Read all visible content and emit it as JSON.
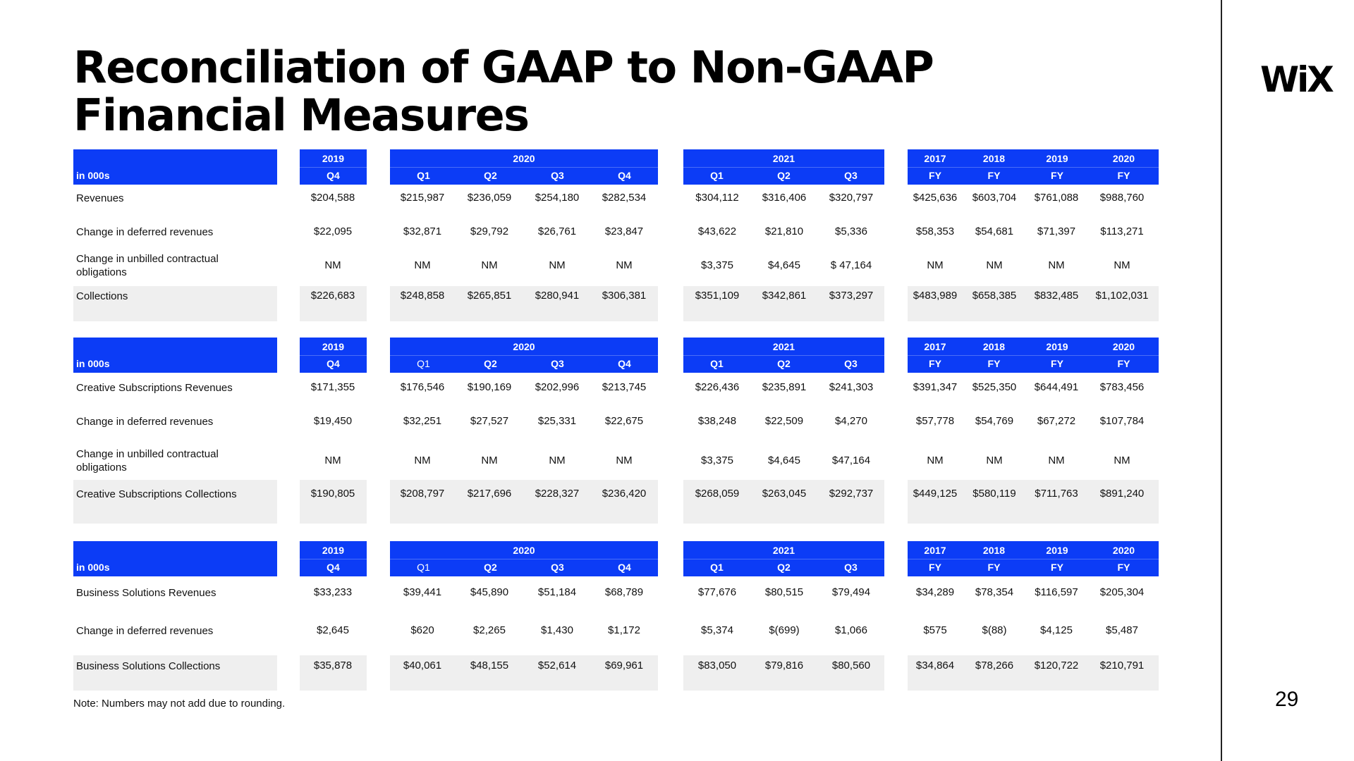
{
  "title_line1": "Reconciliation of GAAP to Non-GAAP",
  "title_line2": "Financial Measures",
  "logo": "WiX",
  "page_number": "29",
  "note": "Note: Numbers may not add due to rounding.",
  "header": {
    "in000s": "in 000s",
    "y2019": "2019",
    "y2020": "2020",
    "y2021": "2021",
    "fy_years": [
      "2017",
      "2018",
      "2019",
      "2020"
    ],
    "q4": "Q4",
    "q1": "Q1",
    "q2": "Q2",
    "q3": "Q3",
    "fy": "FY"
  },
  "table1": {
    "rows": [
      {
        "label": "Revenues",
        "values": [
          "$204,588",
          "$215,987",
          "$236,059",
          "$254,180",
          "$282,534",
          "$304,112",
          "$316,406",
          "$320,797",
          "$425,636",
          "$603,704",
          "$761,088",
          "$988,760"
        ]
      },
      {
        "label": "Change in deferred revenues",
        "values": [
          "$22,095",
          "$32,871",
          "$29,792",
          "$26,761",
          "$23,847",
          "$43,622",
          "$21,810",
          "$5,336",
          "$58,353",
          "$54,681",
          "$71,397",
          "$113,271"
        ]
      },
      {
        "label": "Change in unbilled contractual obligations",
        "values": [
          "NM",
          "NM",
          "NM",
          "NM",
          "NM",
          "$3,375",
          "$4,645",
          "$ 47,164",
          "NM",
          "NM",
          "NM",
          "NM"
        ]
      },
      {
        "label": "Collections",
        "values": [
          "$226,683",
          "$248,858",
          "$265,851",
          "$280,941",
          "$306,381",
          "$351,109",
          "$342,861",
          "$373,297",
          "$483,989",
          "$658,385",
          "$832,485",
          "$1,102,031"
        ]
      }
    ]
  },
  "table2": {
    "rows": [
      {
        "label": "Creative Subscriptions Revenues",
        "values": [
          "$171,355",
          "$176,546",
          "$190,169",
          "$202,996",
          "$213,745",
          "$226,436",
          "$235,891",
          "$241,303",
          "$391,347",
          "$525,350",
          "$644,491",
          "$783,456"
        ]
      },
      {
        "label": "Change in deferred revenues",
        "values": [
          "$19,450",
          "$32,251",
          "$27,527",
          "$25,331",
          "$22,675",
          "$38,248",
          "$22,509",
          "$4,270",
          "$57,778",
          "$54,769",
          "$67,272",
          "$107,784"
        ]
      },
      {
        "label": "Change in unbilled contractual obligations",
        "values": [
          "NM",
          "NM",
          "NM",
          "NM",
          "NM",
          "$3,375",
          "$4,645",
          "$47,164",
          "NM",
          "NM",
          "NM",
          "NM"
        ]
      },
      {
        "label": "Creative Subscriptions Collections",
        "values": [
          "$190,805",
          "$208,797",
          "$217,696",
          "$228,327",
          "$236,420",
          "$268,059",
          "$263,045",
          "$292,737",
          "$449,125",
          "$580,119",
          "$711,763",
          "$891,240"
        ]
      }
    ]
  },
  "table3": {
    "rows": [
      {
        "label": "Business Solutions Revenues",
        "values": [
          "$33,233",
          "$39,441",
          "$45,890",
          "$51,184",
          "$68,789",
          "$77,676",
          "$80,515",
          "$79,494",
          "$34,289",
          "$78,354",
          "$116,597",
          "$205,304"
        ]
      },
      {
        "label": "Change in deferred revenues",
        "values": [
          "$2,645",
          "$620",
          "$2,265",
          "$1,430",
          "$1,172",
          "$5,374",
          "$(699)",
          "$1,066",
          "$575",
          "$(88)",
          "$4,125",
          "$5,487"
        ]
      },
      {
        "label": "Business Solutions Collections",
        "values": [
          "$35,878",
          "$40,061",
          "$48,155",
          "$52,614",
          "$69,961",
          "$83,050",
          "$79,816",
          "$80,560",
          "$34,864",
          "$78,266",
          "$120,722",
          "$210,791"
        ]
      }
    ]
  }
}
